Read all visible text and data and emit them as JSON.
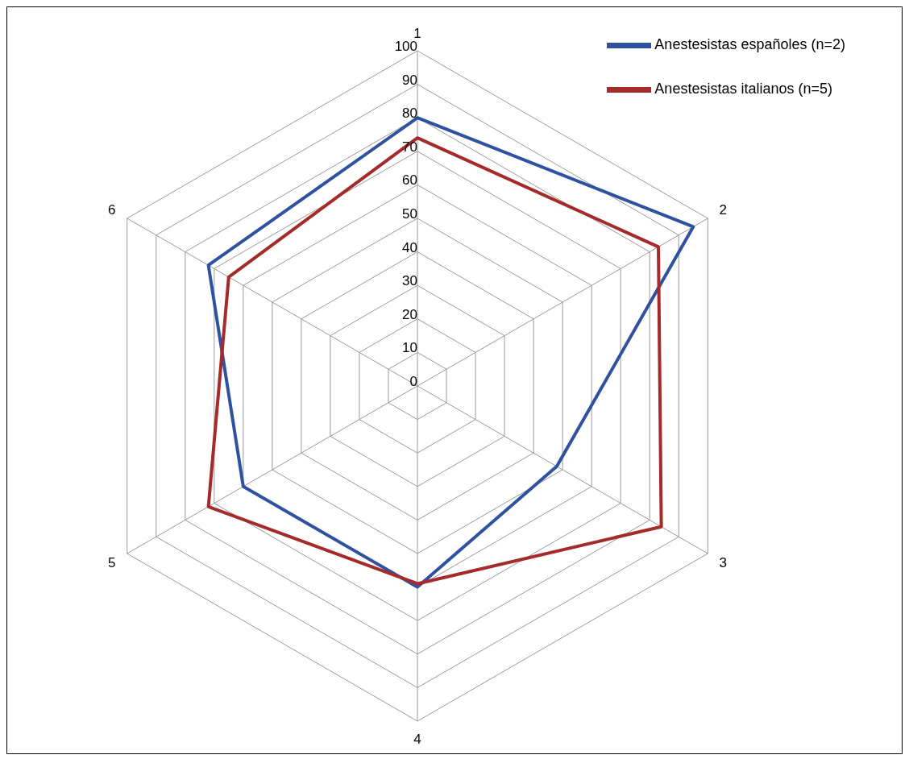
{
  "chart_data": {
    "type": "radar",
    "categories": [
      "1",
      "2",
      "3",
      "4",
      "5",
      "6"
    ],
    "series": [
      {
        "name": "Anestesistas españoles (n=2)",
        "color": "#2f52a0",
        "values": [
          80,
          95,
          48,
          60,
          60,
          72
        ]
      },
      {
        "name": "Anestesistas italianos  (n=5)",
        "color": "#a52a2a",
        "values": [
          74,
          83,
          84,
          59,
          72,
          65
        ]
      }
    ],
    "ylim": [
      0,
      100
    ],
    "yticks": [
      0,
      10,
      20,
      30,
      40,
      50,
      60,
      70,
      80,
      90,
      100
    ],
    "grid": true,
    "legend": "top right"
  }
}
